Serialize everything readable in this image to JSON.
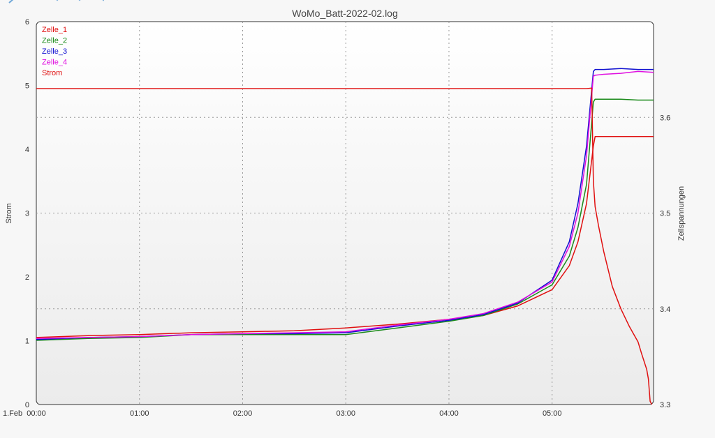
{
  "toolbar": {
    "icons": [
      "home-icon",
      "back-icon",
      "pan-left-icon",
      "pan-right-icon"
    ]
  },
  "chart_data": {
    "type": "line",
    "title": "WoMo_Batt-2022-02.log",
    "xlabel": "",
    "x_date_label": "1.Feb",
    "ylabel_left": "Strom",
    "ylabel_right": "Zellspannungen",
    "xlim": [
      "00:00",
      "05:59"
    ],
    "ylim_left": [
      0,
      6
    ],
    "ylim_right": [
      3.3,
      3.7
    ],
    "x_ticks": [
      "00:00",
      "01:00",
      "02:00",
      "03:00",
      "04:00",
      "05:00"
    ],
    "y_ticks_left": [
      "0",
      "1",
      "2",
      "3",
      "4",
      "5",
      "6"
    ],
    "y_ticks_right": [
      "3.3",
      "3.4",
      "3.5",
      "3.6"
    ],
    "grid": true,
    "legend_position": "top-left",
    "series": [
      {
        "name": "Zelle_1",
        "axis": "right",
        "color": "#e01010",
        "x": [
          "00:00",
          "00:30",
          "01:00",
          "01:30",
          "02:00",
          "02:30",
          "03:00",
          "03:30",
          "04:00",
          "04:20",
          "04:40",
          "05:00",
          "05:10",
          "05:15",
          "05:20",
          "05:24",
          "05:25",
          "05:30",
          "05:40",
          "05:50",
          "05:59"
        ],
        "y": [
          3.37,
          3.372,
          3.373,
          3.375,
          3.376,
          3.377,
          3.38,
          3.384,
          3.389,
          3.393,
          3.403,
          3.42,
          3.445,
          3.47,
          3.51,
          3.57,
          3.58,
          3.58,
          3.58,
          3.58,
          3.58
        ]
      },
      {
        "name": "Zelle_2",
        "axis": "right",
        "color": "#1a8a1a",
        "x": [
          "00:00",
          "00:30",
          "01:00",
          "01:30",
          "02:00",
          "02:30",
          "03:00",
          "03:30",
          "04:00",
          "04:20",
          "04:40",
          "05:00",
          "05:10",
          "05:15",
          "05:20",
          "05:24",
          "05:25",
          "05:30",
          "05:40",
          "05:50",
          "05:59"
        ],
        "y": [
          3.367,
          3.369,
          3.37,
          3.373,
          3.373,
          3.373,
          3.373,
          3.38,
          3.387,
          3.393,
          3.405,
          3.425,
          3.455,
          3.485,
          3.53,
          3.616,
          3.619,
          3.619,
          3.619,
          3.618,
          3.618
        ]
      },
      {
        "name": "Zelle_3",
        "axis": "right",
        "color": "#1010d0",
        "x": [
          "00:00",
          "00:30",
          "01:00",
          "01:30",
          "02:00",
          "02:30",
          "03:00",
          "03:30",
          "04:00",
          "04:20",
          "04:40",
          "05:00",
          "05:10",
          "05:15",
          "05:20",
          "05:24",
          "05:25",
          "05:30",
          "05:40",
          "05:50",
          "05:59"
        ],
        "y": [
          3.368,
          3.37,
          3.371,
          3.373,
          3.374,
          3.374,
          3.375,
          3.382,
          3.388,
          3.394,
          3.406,
          3.43,
          3.47,
          3.51,
          3.57,
          3.648,
          3.65,
          3.65,
          3.651,
          3.65,
          3.65
        ]
      },
      {
        "name": "Zelle_4",
        "axis": "right",
        "color": "#e010e0",
        "x": [
          "00:00",
          "00:30",
          "01:00",
          "01:30",
          "02:00",
          "02:30",
          "03:00",
          "03:30",
          "04:00",
          "04:20",
          "04:40",
          "05:00",
          "05:10",
          "05:15",
          "05:20",
          "05:24",
          "05:25",
          "05:30",
          "05:40",
          "05:50",
          "05:59"
        ],
        "y": [
          3.369,
          3.37,
          3.371,
          3.373,
          3.374,
          3.375,
          3.376,
          3.383,
          3.389,
          3.395,
          3.407,
          3.428,
          3.465,
          3.5,
          3.56,
          3.643,
          3.644,
          3.645,
          3.646,
          3.648,
          3.647
        ]
      },
      {
        "name": "Strom",
        "axis": "left",
        "color": "#e01010",
        "x": [
          "00:00",
          "01:00",
          "02:00",
          "03:00",
          "04:00",
          "05:00",
          "05:20",
          "05:23",
          "05:24",
          "05:25",
          "05:27",
          "05:30",
          "05:35",
          "05:40",
          "05:45",
          "05:50",
          "05:52",
          "05:55",
          "05:56",
          "05:57",
          "05:58"
        ],
        "y": [
          4.95,
          4.95,
          4.95,
          4.95,
          4.95,
          4.95,
          4.95,
          4.96,
          3.5,
          3.1,
          2.8,
          2.4,
          1.85,
          1.5,
          1.22,
          0.98,
          0.8,
          0.55,
          0.4,
          0.05,
          0.0
        ]
      }
    ]
  }
}
